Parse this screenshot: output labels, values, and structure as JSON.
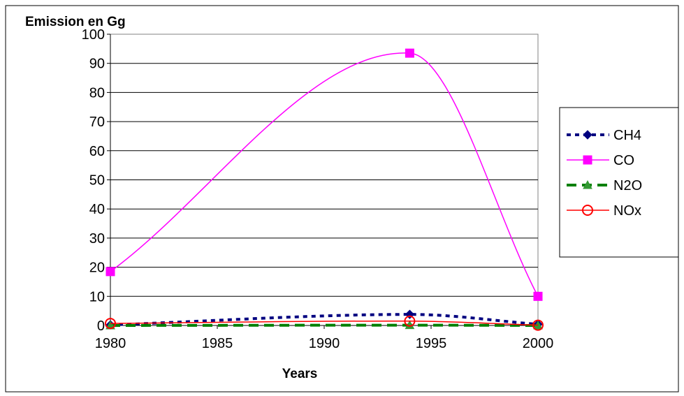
{
  "chart_data": {
    "type": "line",
    "title": "",
    "ylabel": "Emission en Gg",
    "xlabel": "Years",
    "xlim": [
      1980,
      2000
    ],
    "ylim": [
      0,
      100
    ],
    "x_ticks": [
      1980,
      1985,
      1990,
      1995,
      2000
    ],
    "y_ticks": [
      0,
      10,
      20,
      30,
      40,
      50,
      60,
      70,
      80,
      90,
      100
    ],
    "grid": "horizontal",
    "legend_position": "right",
    "series": [
      {
        "name": "CH4",
        "color": "#000080",
        "marker": "diamond",
        "dash": "dotted",
        "x": [
          1980,
          1994,
          2000
        ],
        "y": [
          0.2,
          3.8,
          0.4
        ]
      },
      {
        "name": "CO",
        "color": "#FF00FF",
        "marker": "square",
        "dash": "solid",
        "x": [
          1980,
          1994,
          2000
        ],
        "y": [
          18.5,
          93.5,
          10.0
        ]
      },
      {
        "name": "N2O",
        "color": "#008000",
        "marker": "triangle",
        "dash": "dashed",
        "x": [
          1980,
          1994,
          2000
        ],
        "y": [
          0.0,
          0.1,
          0.0
        ]
      },
      {
        "name": "NOx",
        "color": "#FF0000",
        "marker": "circle-open",
        "dash": "solid",
        "x": [
          1980,
          1994,
          2000
        ],
        "y": [
          0.7,
          1.5,
          0.1
        ]
      }
    ]
  }
}
